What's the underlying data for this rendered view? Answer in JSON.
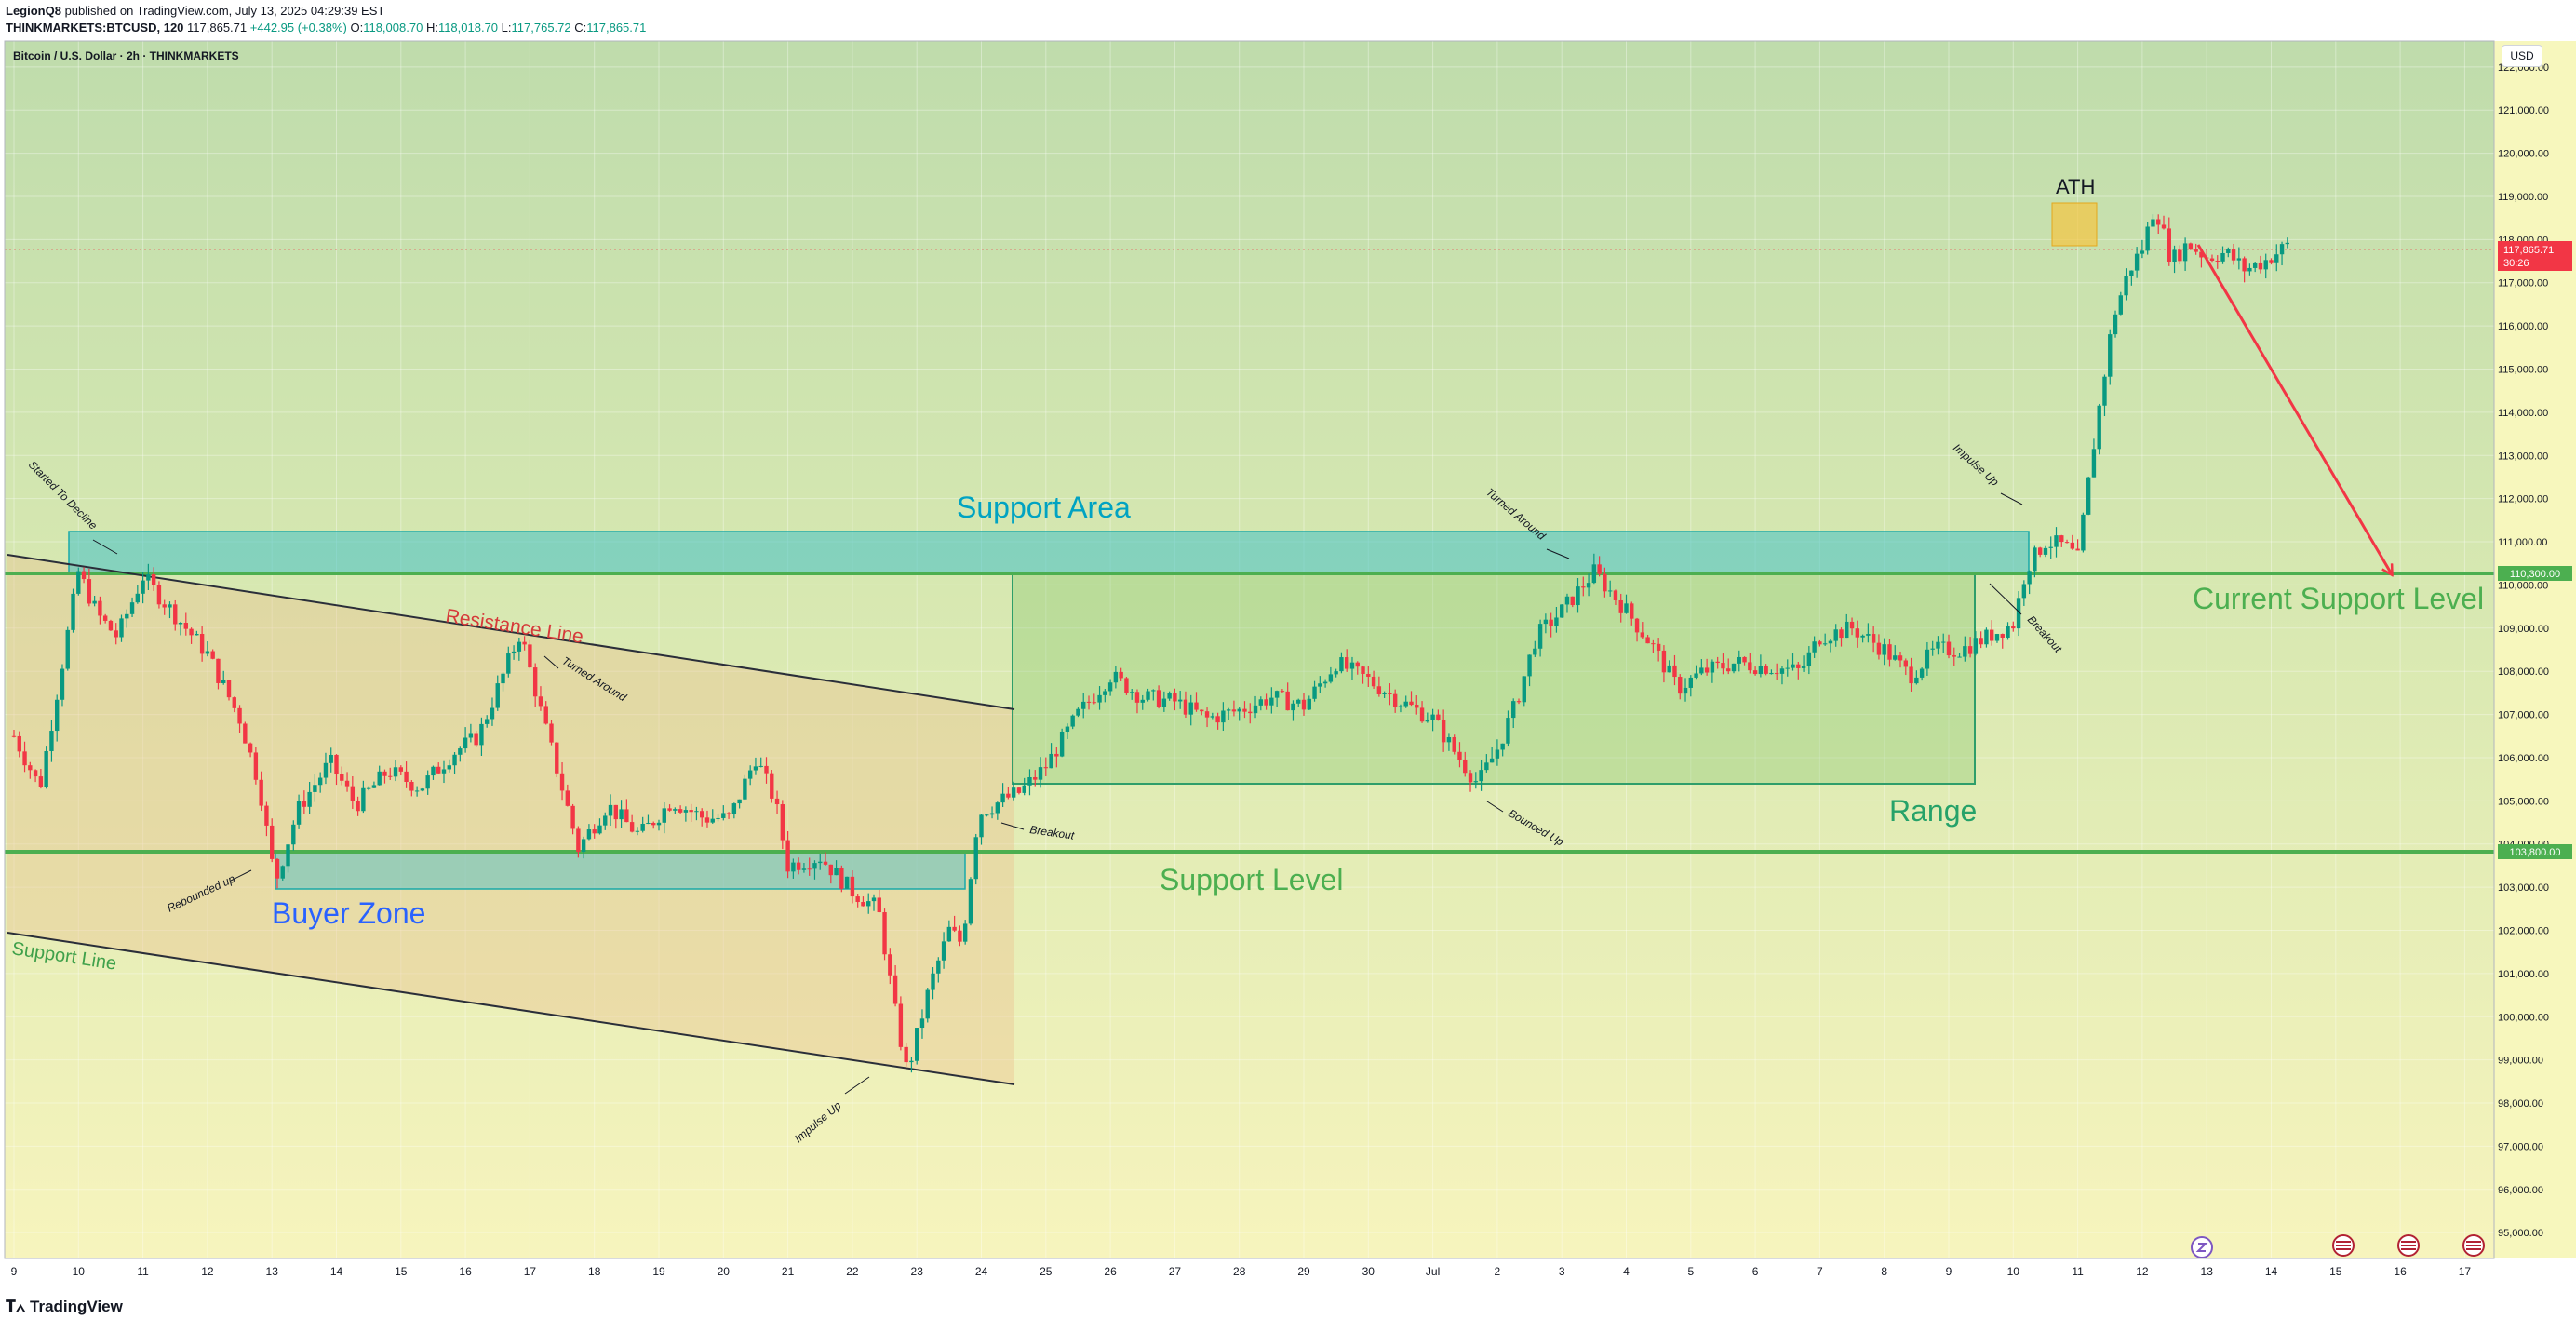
{
  "header": {
    "author": "LegionQ8",
    "published": "published on TradingView.com, July 13, 2025 04:29:39 EST",
    "symbol": "THINKMARKETS:BTCUSD, 120",
    "price": "117,865.71",
    "change": "+442.95 (+0.38%)",
    "o_label": "O:",
    "o": "118,008.70",
    "h_label": "H:",
    "h": "118,018.70",
    "l_label": "L:",
    "l": "117,765.72",
    "c_label": "C:",
    "c": "117,865.71"
  },
  "currency_button": "USD",
  "footer": {
    "logo": "TradingView"
  },
  "colors": {
    "up": "#089981",
    "down": "#f23645",
    "support_line": "#4caf50",
    "support_area": "#5fc9c4",
    "range_box": "#4caf50",
    "arrow": "#f23645"
  },
  "chart_data": {
    "type": "candlestick",
    "title": "Bitcoin / U.S. Dollar · 2h · THINKMARKETS",
    "x_ticks": [
      "9",
      "10",
      "11",
      "12",
      "13",
      "14",
      "15",
      "16",
      "17",
      "18",
      "19",
      "20",
      "21",
      "22",
      "23",
      "24",
      "25",
      "26",
      "27",
      "28",
      "29",
      "30",
      "Jul",
      "2",
      "3",
      "4",
      "5",
      "6",
      "7",
      "8",
      "9",
      "10",
      "11",
      "12",
      "13",
      "14",
      "15",
      "16",
      "17"
    ],
    "ylim": [
      94400,
      122600
    ],
    "y_ticks": [
      "95,000.00",
      "96,000.00",
      "97,000.00",
      "98,000.00",
      "99,000.00",
      "100,000.00",
      "101,000.00",
      "102,000.00",
      "103,000.00",
      "104,000.00",
      "105,000.00",
      "106,000.00",
      "107,000.00",
      "108,000.00",
      "109,000.00",
      "110,000.00",
      "111,000.00",
      "112,000.00",
      "113,000.00",
      "114,000.00",
      "115,000.00",
      "116,000.00",
      "117,000.00",
      "118,000.00",
      "119,000.00",
      "120,000.00",
      "121,000.00",
      "122,000.00"
    ],
    "current_price": "117,865.71",
    "countdown": "30:26",
    "levels": [
      {
        "label": "110,300.00",
        "value": 110300
      },
      {
        "label": "103,800.00",
        "value": 103800
      }
    ],
    "price_path": [
      {
        "d": 9.0,
        "p": 106500
      },
      {
        "d": 9.4,
        "p": 105300
      },
      {
        "d": 9.8,
        "p": 108600
      },
      {
        "d": 10.0,
        "p": 110300
      },
      {
        "d": 10.3,
        "p": 109300
      },
      {
        "d": 10.6,
        "p": 108800
      },
      {
        "d": 11.0,
        "p": 110200
      },
      {
        "d": 11.5,
        "p": 109300
      },
      {
        "d": 12.0,
        "p": 108400
      },
      {
        "d": 12.5,
        "p": 106900
      },
      {
        "d": 12.8,
        "p": 105400
      },
      {
        "d": 13.05,
        "p": 103100
      },
      {
        "d": 13.4,
        "p": 104800
      },
      {
        "d": 13.9,
        "p": 105900
      },
      {
        "d": 14.3,
        "p": 104900
      },
      {
        "d": 14.8,
        "p": 105700
      },
      {
        "d": 15.3,
        "p": 105300
      },
      {
        "d": 15.8,
        "p": 106100
      },
      {
        "d": 16.2,
        "p": 106500
      },
      {
        "d": 16.5,
        "p": 107600
      },
      {
        "d": 16.85,
        "p": 108900
      },
      {
        "d": 17.2,
        "p": 106900
      },
      {
        "d": 17.5,
        "p": 105300
      },
      {
        "d": 17.75,
        "p": 103900
      },
      {
        "d": 18.2,
        "p": 104900
      },
      {
        "d": 18.7,
        "p": 104200
      },
      {
        "d": 19.2,
        "p": 105000
      },
      {
        "d": 19.7,
        "p": 104600
      },
      {
        "d": 20.1,
        "p": 104600
      },
      {
        "d": 20.5,
        "p": 106000
      },
      {
        "d": 20.8,
        "p": 105000
      },
      {
        "d": 21.0,
        "p": 103500
      },
      {
        "d": 21.5,
        "p": 103700
      },
      {
        "d": 22.0,
        "p": 102900
      },
      {
        "d": 22.4,
        "p": 102500
      },
      {
        "d": 22.7,
        "p": 99800
      },
      {
        "d": 22.85,
        "p": 98700
      },
      {
        "d": 23.2,
        "p": 100700
      },
      {
        "d": 23.5,
        "p": 102000
      },
      {
        "d": 23.7,
        "p": 101700
      },
      {
        "d": 23.95,
        "p": 104700
      },
      {
        "d": 24.3,
        "p": 105000
      },
      {
        "d": 24.6,
        "p": 105200
      },
      {
        "d": 25.0,
        "p": 105800
      },
      {
        "d": 25.5,
        "p": 107000
      },
      {
        "d": 26.0,
        "p": 107900
      },
      {
        "d": 26.5,
        "p": 107400
      },
      {
        "d": 27.0,
        "p": 107300
      },
      {
        "d": 27.5,
        "p": 106900
      },
      {
        "d": 28.0,
        "p": 107100
      },
      {
        "d": 28.5,
        "p": 107400
      },
      {
        "d": 29.0,
        "p": 107200
      },
      {
        "d": 29.5,
        "p": 108200
      },
      {
        "d": 30.0,
        "p": 107800
      },
      {
        "d": 30.5,
        "p": 107300
      },
      {
        "d": 31.0,
        "p": 106900
      },
      {
        "d": 31.4,
        "p": 106000
      },
      {
        "d": 31.7,
        "p": 105400
      },
      {
        "d": 32.0,
        "p": 106200
      },
      {
        "d": 32.3,
        "p": 107300
      },
      {
        "d": 32.6,
        "p": 108800
      },
      {
        "d": 33.0,
        "p": 109400
      },
      {
        "d": 33.5,
        "p": 110300
      },
      {
        "d": 34.0,
        "p": 109400
      },
      {
        "d": 34.4,
        "p": 108600
      },
      {
        "d": 34.8,
        "p": 107600
      },
      {
        "d": 35.2,
        "p": 108000
      },
      {
        "d": 35.7,
        "p": 108200
      },
      {
        "d": 36.2,
        "p": 108100
      },
      {
        "d": 36.7,
        "p": 108000
      },
      {
        "d": 37.0,
        "p": 108800
      },
      {
        "d": 37.5,
        "p": 109000
      },
      {
        "d": 38.0,
        "p": 108500
      },
      {
        "d": 38.4,
        "p": 107900
      },
      {
        "d": 38.8,
        "p": 108500
      },
      {
        "d": 39.2,
        "p": 108500
      },
      {
        "d": 39.6,
        "p": 108800
      },
      {
        "d": 40.0,
        "p": 109100
      },
      {
        "d": 40.2,
        "p": 110400
      },
      {
        "d": 40.5,
        "p": 111000
      },
      {
        "d": 40.8,
        "p": 110900
      },
      {
        "d": 41.0,
        "p": 110600
      },
      {
        "d": 41.3,
        "p": 113800
      },
      {
        "d": 41.55,
        "p": 116200
      },
      {
        "d": 41.8,
        "p": 117300
      },
      {
        "d": 42.0,
        "p": 117800
      },
      {
        "d": 42.2,
        "p": 118800
      },
      {
        "d": 42.45,
        "p": 117500
      },
      {
        "d": 42.7,
        "p": 117900
      },
      {
        "d": 43.0,
        "p": 117600
      },
      {
        "d": 43.3,
        "p": 117700
      },
      {
        "d": 43.6,
        "p": 117300
      },
      {
        "d": 43.9,
        "p": 117500
      },
      {
        "d": 44.25,
        "p": 117865
      }
    ]
  },
  "annotations": {
    "support_area": "Support Area",
    "resistance_line": "Resistance Line",
    "buyer_zone": "Buyer Zone",
    "support_line": "Support Line",
    "support_level": "Support Level",
    "range": "Range",
    "current_support": "Current Support Level",
    "ath": "ATH",
    "started_to_decline": "Started To Decline",
    "turned_around_1": "Turned Around",
    "rebounded_up": "Rebounded up",
    "impulse_up_1": "Impulse Up",
    "breakout_1": "Breakout",
    "turned_around_2": "Turned Around",
    "bounced_up": "Bounced Up",
    "impulse_up_2": "Impulse Up",
    "breakout_2": "Breakout"
  }
}
